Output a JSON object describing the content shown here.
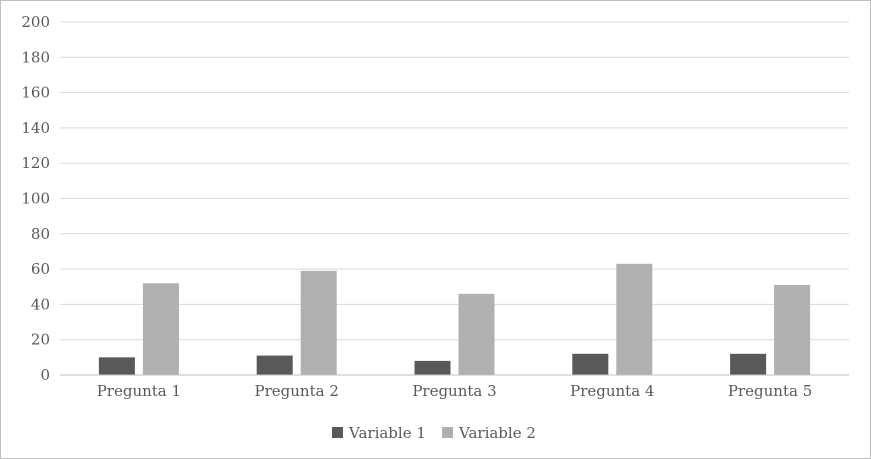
{
  "chart_data": {
    "type": "bar",
    "categories": [
      "Pregunta 1",
      "Pregunta 2",
      "Pregunta 3",
      "Pregunta 4",
      "Pregunta 5"
    ],
    "series": [
      {
        "name": "Variable 1",
        "values": [
          10,
          11,
          8,
          12,
          12
        ],
        "color": "#595959"
      },
      {
        "name": "Variable 2",
        "values": [
          52,
          59,
          46,
          63,
          51
        ],
        "color": "#b0b0b0"
      }
    ],
    "y_ticks": [
      "0",
      "20",
      "40",
      "60",
      "80",
      "100",
      "120",
      "140",
      "160",
      "180",
      "200"
    ],
    "ylim": [
      0,
      200
    ],
    "grid": true,
    "legend_position": "bottom"
  }
}
